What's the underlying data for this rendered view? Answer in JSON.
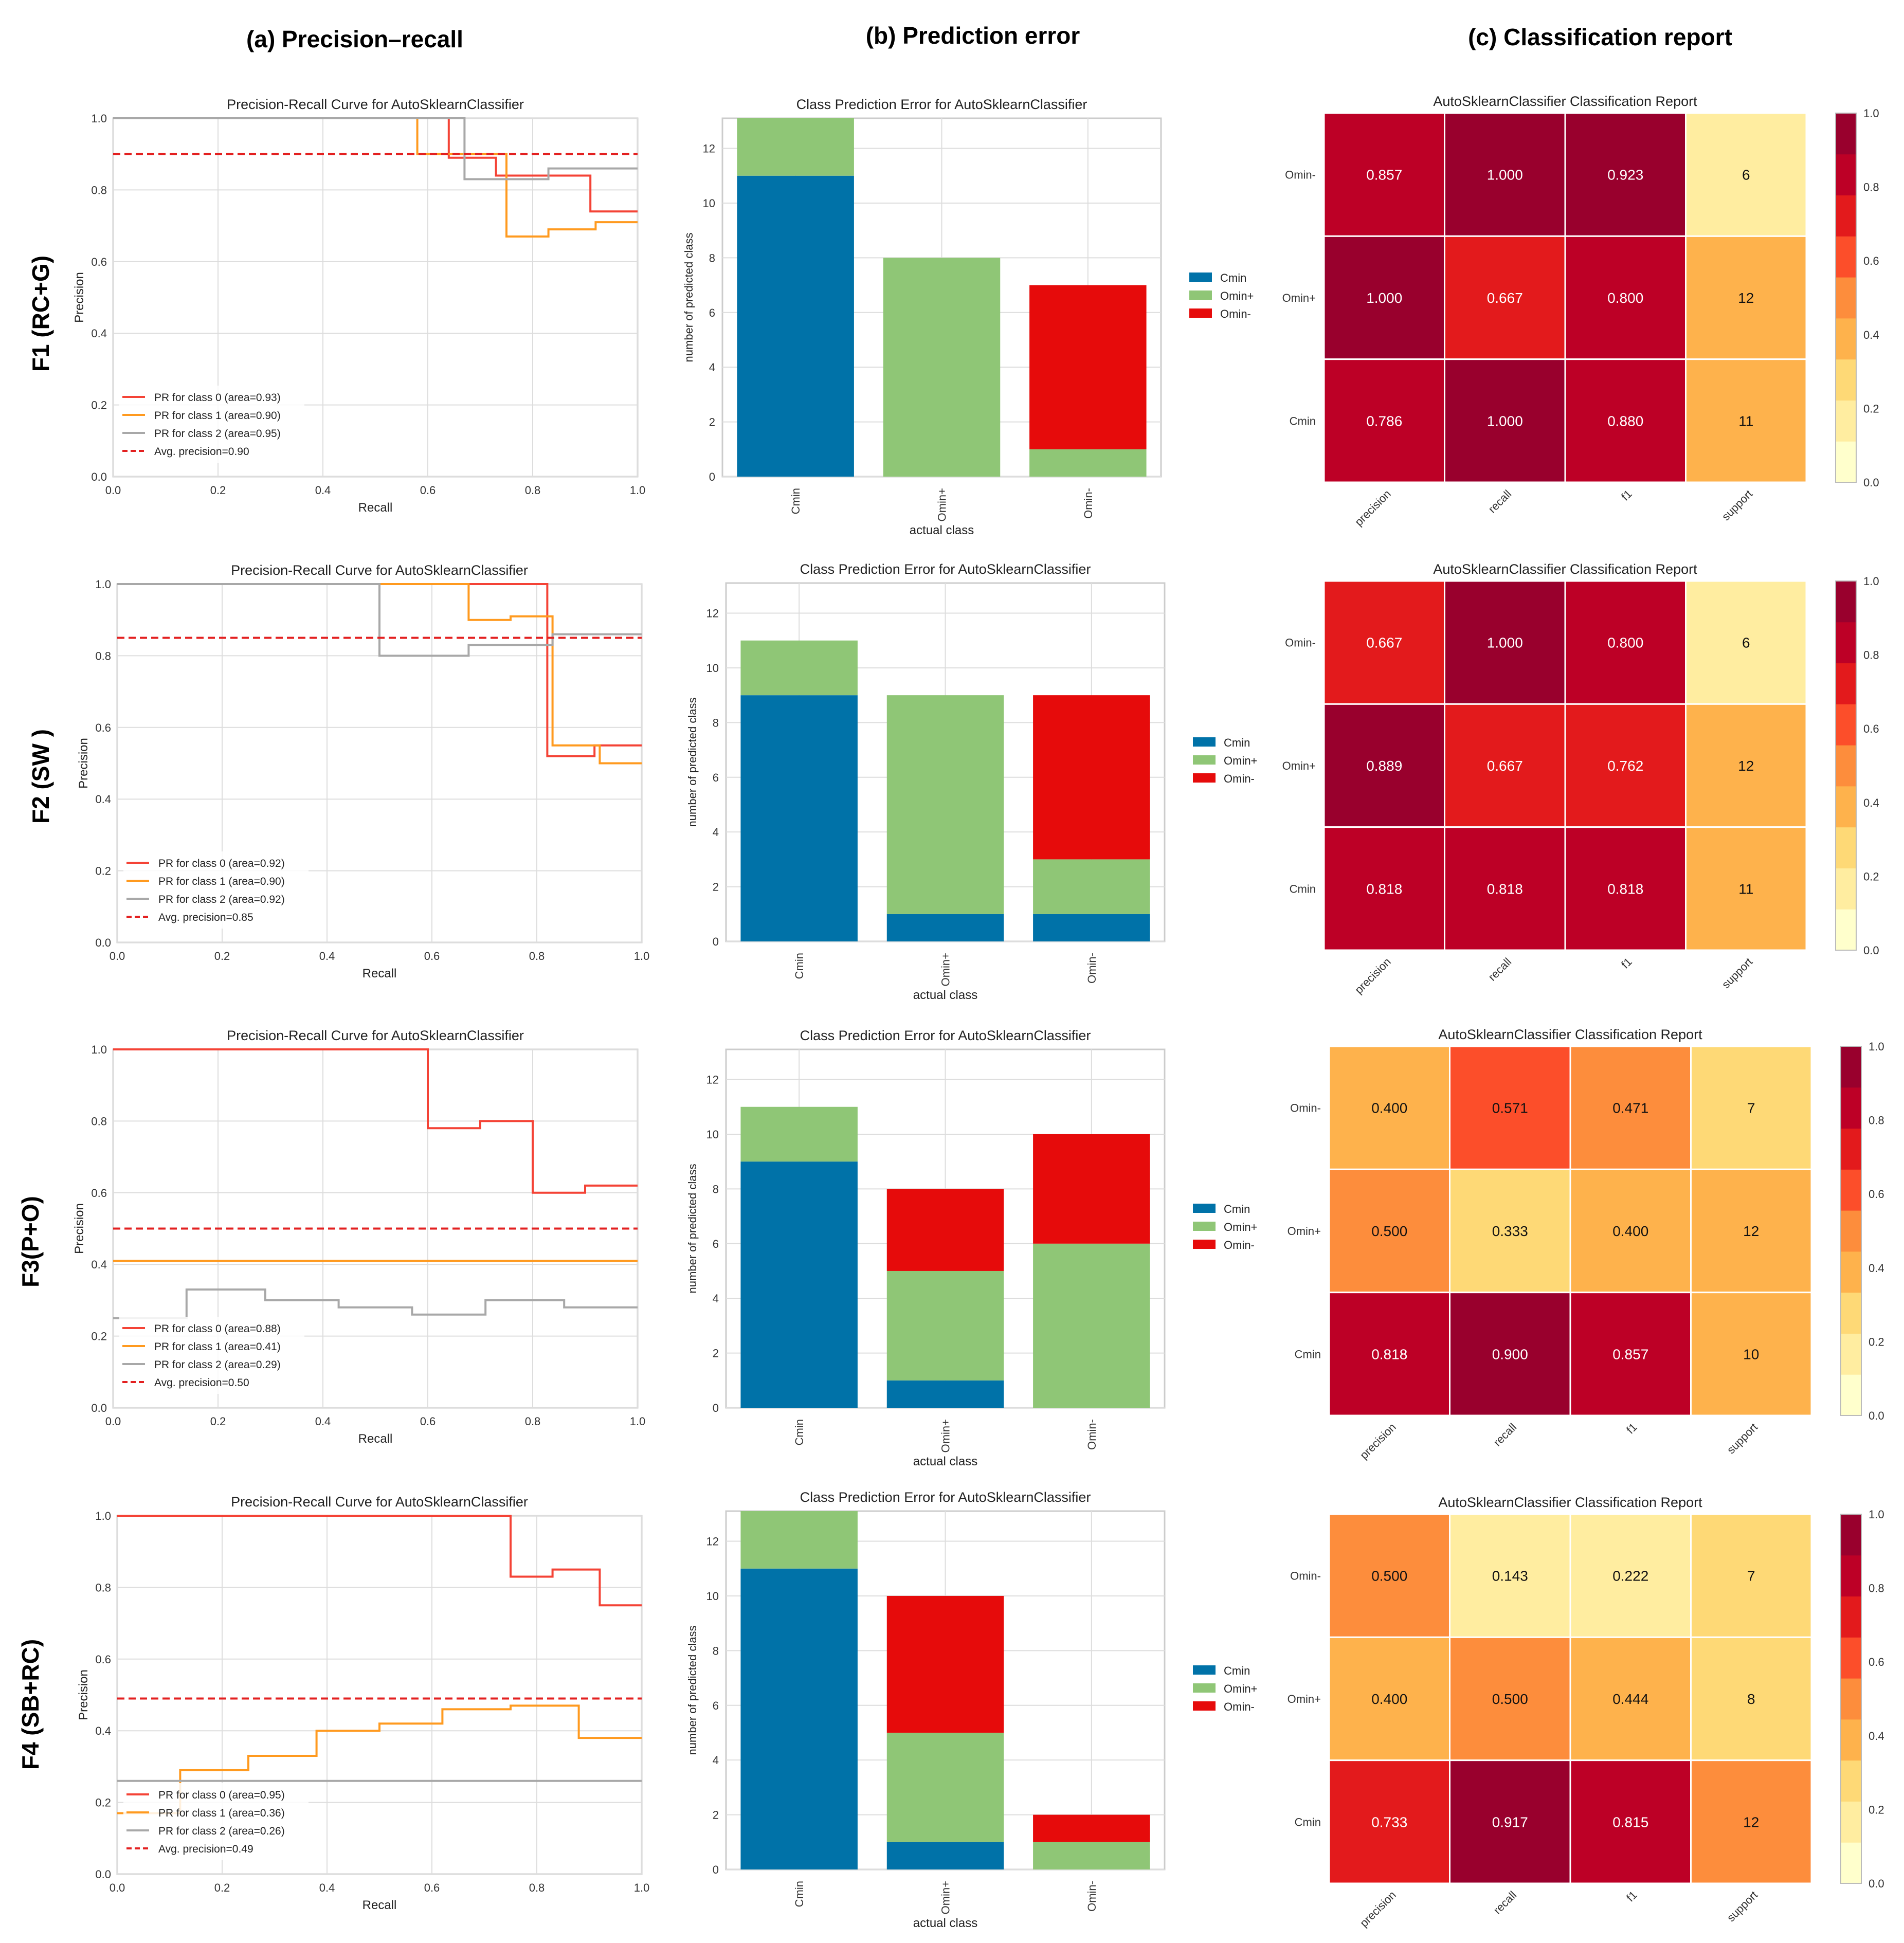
{
  "columns": [
    "(a) Precision–recall",
    "(b) Prediction error",
    "(c) Classification report"
  ],
  "row_labels": [
    "F1 (RC+G)",
    "F2 (SW )",
    "F3(P+O)",
    "F4 (SB+RC)"
  ],
  "colors": {
    "pr_class0": "#f44336",
    "pr_class1": "#ff9a1f",
    "pr_class2": "#a8a8a8",
    "pr_avg": "#e32020",
    "pe_cmin": "#0072a8",
    "pe_ominplus": "#8fc676",
    "pe_ominminus": "#e60b0b",
    "heat_scale": [
      "#ffffcc",
      "#ffeda0",
      "#fed976",
      "#feb24c",
      "#fd8d3c",
      "#fc4e2a",
      "#e31a1c",
      "#bd0026",
      "#99002d"
    ],
    "grid": "#dddddd",
    "panel_border": "#cccccc"
  },
  "chart_data": [
    {
      "type": "line",
      "title": "Precision-Recall Curve for AutoSklearnClassifier",
      "xlabel": "Recall",
      "ylabel": "Precision",
      "xlim": [
        0,
        1
      ],
      "ylim": [
        0,
        1
      ],
      "xticks": [
        "0.0",
        "0.2",
        "0.4",
        "0.6",
        "0.8",
        "1.0"
      ],
      "yticks": [
        "0.0",
        "0.2",
        "0.4",
        "0.6",
        "0.8",
        "1.0"
      ],
      "legend": "lower-left",
      "series": [
        {
          "name": "PR for class 0 (area=0.93)",
          "x": [
            0,
            0.64,
            0.64,
            0.73,
            0.73,
            0.91,
            0.91,
            1.0
          ],
          "y": [
            1.0,
            1.0,
            0.89,
            0.89,
            0.84,
            0.84,
            0.74,
            0.74
          ]
        },
        {
          "name": "PR for class 1 (area=0.90)",
          "x": [
            0,
            0.58,
            0.58,
            0.75,
            0.75,
            0.83,
            0.83,
            0.92,
            0.92,
            1.0
          ],
          "y": [
            1.0,
            1.0,
            0.9,
            0.9,
            0.67,
            0.67,
            0.69,
            0.69,
            0.71,
            0.71
          ]
        },
        {
          "name": "PR for class 2 (area=0.95)",
          "x": [
            0,
            0.67,
            0.67,
            0.83,
            0.83,
            1.0
          ],
          "y": [
            1.0,
            1.0,
            0.83,
            0.83,
            0.86,
            0.86
          ]
        },
        {
          "name": "Avg. precision=0.90",
          "value": 0.9
        }
      ]
    },
    {
      "type": "bar",
      "stacked": true,
      "title": "Class Prediction Error for AutoSklearnClassifier",
      "xlabel": "actual class",
      "ylabel": "number of predicted class",
      "ylim": [
        0,
        13.1
      ],
      "yticks": [
        "0",
        "2",
        "4",
        "6",
        "8",
        "10",
        "12"
      ],
      "legend": "right",
      "categories": [
        "Cmin",
        "Omin+",
        "Omin-"
      ],
      "series": [
        {
          "name": "Cmin",
          "values": [
            11,
            0,
            0
          ]
        },
        {
          "name": "Omin+",
          "values": [
            2.1,
            8,
            1
          ]
        },
        {
          "name": "Omin-",
          "values": [
            0,
            0,
            6
          ]
        }
      ]
    },
    {
      "type": "heatmap",
      "title": "AutoSklearnClassifier Classification Report",
      "columns": [
        "precision",
        "recall",
        "f1",
        "support"
      ],
      "rows": [
        "Omin-",
        "Omin+",
        "Cmin"
      ],
      "cells": [
        [
          "0.857",
          "1.000",
          "0.923",
          "6"
        ],
        [
          "1.000",
          "0.667",
          "0.800",
          "12"
        ],
        [
          "0.786",
          "1.000",
          "0.880",
          "11"
        ]
      ],
      "values": [
        [
          0.857,
          1.0,
          0.923,
          0.17
        ],
        [
          1.0,
          0.667,
          0.8,
          0.38
        ],
        [
          0.786,
          1.0,
          0.88,
          0.38
        ]
      ],
      "colorbar_ticks": [
        "1.0",
        "0.8",
        "0.6",
        "0.4",
        "0.2",
        "0.0"
      ]
    },
    {
      "type": "line",
      "title": "Precision-Recall Curve for AutoSklearnClassifier",
      "xlabel": "Recall",
      "ylabel": "Precision",
      "xlim": [
        0,
        1
      ],
      "ylim": [
        0,
        1
      ],
      "xticks": [
        "0.0",
        "0.2",
        "0.4",
        "0.6",
        "0.8",
        "1.0"
      ],
      "yticks": [
        "0.0",
        "0.2",
        "0.4",
        "0.6",
        "0.8",
        "1.0"
      ],
      "legend": "lower-left",
      "series": [
        {
          "name": "PR for class 0 (area=0.92)",
          "x": [
            0,
            0.82,
            0.82,
            0.91,
            0.91,
            1.0
          ],
          "y": [
            1.0,
            1.0,
            0.52,
            0.52,
            0.55,
            0.55
          ]
        },
        {
          "name": "PR for class 1 (area=0.90)",
          "x": [
            0,
            0.67,
            0.67,
            0.75,
            0.75,
            0.83,
            0.83,
            0.92,
            0.92,
            1.0
          ],
          "y": [
            1.0,
            1.0,
            0.9,
            0.9,
            0.91,
            0.91,
            0.55,
            0.55,
            0.5,
            0.5
          ]
        },
        {
          "name": "PR for class 2 (area=0.92)",
          "x": [
            0,
            0.5,
            0.5,
            0.67,
            0.67,
            0.83,
            0.83,
            1.0
          ],
          "y": [
            1.0,
            1.0,
            0.8,
            0.8,
            0.83,
            0.83,
            0.86,
            0.86
          ]
        },
        {
          "name": "Avg. precision=0.85",
          "value": 0.85
        }
      ]
    },
    {
      "type": "bar",
      "stacked": true,
      "title": "Class Prediction Error for AutoSklearnClassifier",
      "xlabel": "actual class",
      "ylabel": "number of predicted class",
      "ylim": [
        0,
        13.1
      ],
      "yticks": [
        "0",
        "2",
        "4",
        "6",
        "8",
        "10",
        "12"
      ],
      "legend": "right",
      "categories": [
        "Cmin",
        "Omin+",
        "Omin-"
      ],
      "series": [
        {
          "name": "Cmin",
          "values": [
            9,
            1,
            1
          ]
        },
        {
          "name": "Omin+",
          "values": [
            2,
            8,
            2
          ]
        },
        {
          "name": "Omin-",
          "values": [
            0,
            0,
            6
          ]
        }
      ]
    },
    {
      "type": "heatmap",
      "title": "AutoSklearnClassifier Classification Report",
      "columns": [
        "precision",
        "recall",
        "f1",
        "support"
      ],
      "rows": [
        "Omin-",
        "Omin+",
        "Cmin"
      ],
      "cells": [
        [
          "0.667",
          "1.000",
          "0.800",
          "6"
        ],
        [
          "0.889",
          "0.667",
          "0.762",
          "12"
        ],
        [
          "0.818",
          "0.818",
          "0.818",
          "11"
        ]
      ],
      "values": [
        [
          0.667,
          1.0,
          0.8,
          0.17
        ],
        [
          0.889,
          0.667,
          0.762,
          0.38
        ],
        [
          0.818,
          0.818,
          0.818,
          0.38
        ]
      ],
      "colorbar_ticks": [
        "1.0",
        "0.8",
        "0.6",
        "0.4",
        "0.2",
        "0.0"
      ]
    },
    {
      "type": "line",
      "title": "Precision-Recall Curve for AutoSklearnClassifier",
      "xlabel": "Recall",
      "ylabel": "Precision",
      "xlim": [
        0,
        1
      ],
      "ylim": [
        0,
        1
      ],
      "xticks": [
        "0.0",
        "0.2",
        "0.4",
        "0.6",
        "0.8",
        "1.0"
      ],
      "yticks": [
        "0.0",
        "0.2",
        "0.4",
        "0.6",
        "0.8",
        "1.0"
      ],
      "legend": "lower-left",
      "series": [
        {
          "name": "PR for class 0 (area=0.88)",
          "x": [
            0,
            0.6,
            0.6,
            0.7,
            0.7,
            0.8,
            0.8,
            0.9,
            0.9,
            1.0
          ],
          "y": [
            1.0,
            1.0,
            0.78,
            0.78,
            0.8,
            0.8,
            0.6,
            0.6,
            0.62,
            0.62
          ]
        },
        {
          "name": "PR for class 1 (area=0.41)",
          "x": [
            0,
            1.0
          ],
          "y": [
            0.41,
            0.41
          ]
        },
        {
          "name": "PR for class 2 (area=0.29)",
          "x": [
            0,
            0.14,
            0.14,
            0.29,
            0.29,
            0.43,
            0.43,
            0.57,
            0.57,
            0.71,
            0.71,
            0.86,
            0.86,
            1.0
          ],
          "y": [
            0.25,
            0.25,
            0.33,
            0.33,
            0.3,
            0.3,
            0.28,
            0.28,
            0.26,
            0.26,
            0.3,
            0.3,
            0.28,
            0.28
          ]
        },
        {
          "name": "Avg. precision=0.50",
          "value": 0.5
        }
      ]
    },
    {
      "type": "bar",
      "stacked": true,
      "title": "Class Prediction Error for AutoSklearnClassifier",
      "xlabel": "actual class",
      "ylabel": "number of predicted class",
      "ylim": [
        0,
        13.1
      ],
      "yticks": [
        "0",
        "2",
        "4",
        "6",
        "8",
        "10",
        "12"
      ],
      "legend": "right",
      "categories": [
        "Cmin",
        "Omin+",
        "Omin-"
      ],
      "series": [
        {
          "name": "Cmin",
          "values": [
            9,
            1,
            0
          ]
        },
        {
          "name": "Omin+",
          "values": [
            2,
            4,
            6
          ]
        },
        {
          "name": "Omin-",
          "values": [
            0,
            3,
            4
          ]
        }
      ]
    },
    {
      "type": "heatmap",
      "title": "AutoSklearnClassifier Classification Report",
      "columns": [
        "precision",
        "recall",
        "f1",
        "support"
      ],
      "rows": [
        "Omin-",
        "Omin+",
        "Cmin"
      ],
      "cells": [
        [
          "0.400",
          "0.571",
          "0.471",
          "7"
        ],
        [
          "0.500",
          "0.333",
          "0.400",
          "12"
        ],
        [
          "0.818",
          "0.900",
          "0.857",
          "10"
        ]
      ],
      "values": [
        [
          0.4,
          0.571,
          0.471,
          0.28
        ],
        [
          0.5,
          0.333,
          0.4,
          0.38
        ],
        [
          0.818,
          0.9,
          0.857,
          0.38
        ]
      ],
      "colorbar_ticks": [
        "1.0",
        "0.8",
        "0.6",
        "0.4",
        "0.2",
        "0.0"
      ]
    },
    {
      "type": "line",
      "title": "Precision-Recall Curve for AutoSklearnClassifier",
      "xlabel": "Recall",
      "ylabel": "Precision",
      "xlim": [
        0,
        1
      ],
      "ylim": [
        0,
        1
      ],
      "xticks": [
        "0.0",
        "0.2",
        "0.4",
        "0.6",
        "0.8",
        "1.0"
      ],
      "yticks": [
        "0.0",
        "0.2",
        "0.4",
        "0.6",
        "0.8",
        "1.0"
      ],
      "legend": "lower-left",
      "series": [
        {
          "name": "PR for class 0 (area=0.95)",
          "x": [
            0,
            0.75,
            0.75,
            0.83,
            0.83,
            0.92,
            0.92,
            1.0
          ],
          "y": [
            1.0,
            1.0,
            0.83,
            0.83,
            0.85,
            0.85,
            0.75,
            0.75
          ]
        },
        {
          "name": "PR for class 1 (area=0.36)",
          "x": [
            0,
            0.12,
            0.12,
            0.25,
            0.25,
            0.38,
            0.38,
            0.5,
            0.5,
            0.62,
            0.62,
            0.75,
            0.75,
            0.88,
            0.88,
            1.0
          ],
          "y": [
            0.17,
            0.17,
            0.29,
            0.29,
            0.33,
            0.33,
            0.4,
            0.4,
            0.42,
            0.42,
            0.46,
            0.46,
            0.47,
            0.47,
            0.38,
            0.38
          ]
        },
        {
          "name": "PR for class 2 (area=0.26)",
          "x": [
            0,
            1.0
          ],
          "y": [
            0.26,
            0.26
          ]
        },
        {
          "name": "Avg. precision=0.49",
          "value": 0.49
        }
      ]
    },
    {
      "type": "bar",
      "stacked": true,
      "title": "Class Prediction Error for AutoSklearnClassifier",
      "xlabel": "actual class",
      "ylabel": "number of predicted class",
      "ylim": [
        0,
        13.1
      ],
      "yticks": [
        "0",
        "2",
        "4",
        "6",
        "8",
        "10",
        "12"
      ],
      "legend": "right",
      "categories": [
        "Cmin",
        "Omin+",
        "Omin-"
      ],
      "series": [
        {
          "name": "Cmin",
          "values": [
            11,
            1,
            0
          ]
        },
        {
          "name": "Omin+",
          "values": [
            2.1,
            4,
            1
          ]
        },
        {
          "name": "Omin-",
          "values": [
            0,
            5,
            1
          ]
        }
      ]
    },
    {
      "type": "heatmap",
      "title": "AutoSklearnClassifier Classification Report",
      "columns": [
        "precision",
        "recall",
        "f1",
        "support"
      ],
      "rows": [
        "Omin-",
        "Omin+",
        "Cmin"
      ],
      "cells": [
        [
          "0.500",
          "0.143",
          "0.222",
          "7"
        ],
        [
          "0.400",
          "0.500",
          "0.444",
          "8"
        ],
        [
          "0.733",
          "0.917",
          "0.815",
          "12"
        ]
      ],
      "values": [
        [
          0.5,
          0.143,
          0.222,
          0.28
        ],
        [
          0.4,
          0.5,
          0.444,
          0.28
        ],
        [
          0.733,
          0.917,
          0.815,
          0.5
        ]
      ],
      "colorbar_ticks": [
        "1.0",
        "0.8",
        "0.6",
        "0.4",
        "0.2",
        "0.0"
      ]
    }
  ]
}
